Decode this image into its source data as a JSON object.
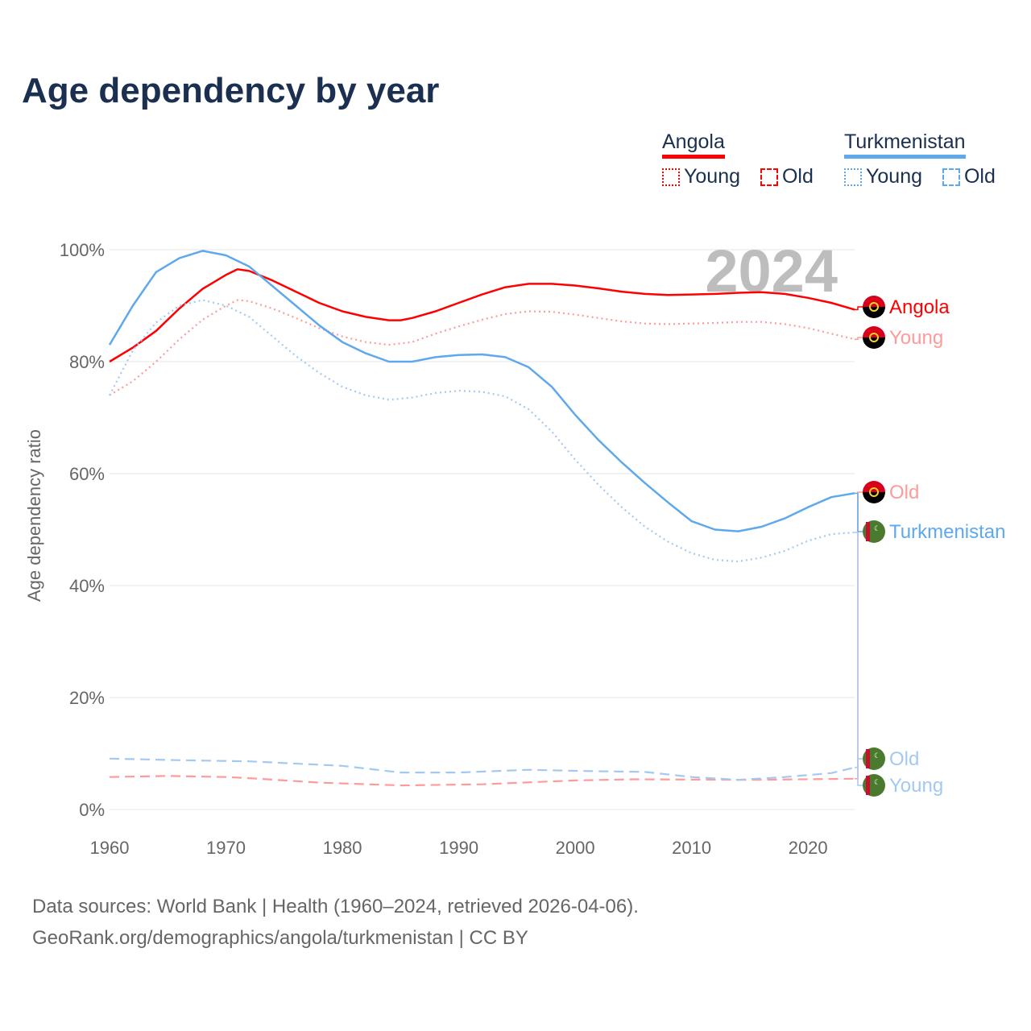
{
  "colors": {
    "angola": "#ff0000",
    "angola_light": "#ff9a9a",
    "turkmenistan": "#5ea8ee",
    "turkmenistan_light": "#a3c9f2",
    "title": "#1b3050"
  },
  "legend": {
    "groups": [
      {
        "name": "Angola",
        "young": "Young",
        "old": "Old"
      },
      {
        "name": "Turkmenistan",
        "young": "Young",
        "old": "Old"
      }
    ]
  },
  "footer": {
    "line1": "Data sources: World Bank | Health (1960–2024, retrieved 2026-04-06).",
    "line2": "GeoRank.org/demographics/angola/turkmenistan | CC BY"
  },
  "chart_data": {
    "type": "line",
    "title": "Age dependency by year",
    "ylabel": "Age dependency ratio",
    "xlabel": "",
    "year_label": "2024",
    "xlim": [
      1960,
      2024
    ],
    "ylim": [
      0,
      100
    ],
    "x_ticks": [
      "1960",
      "1970",
      "1980",
      "1990",
      "2000",
      "2010",
      "2020"
    ],
    "y_ticks": [
      "0%",
      "20%",
      "40%",
      "60%",
      "80%",
      "100%"
    ],
    "grid": true,
    "series": [
      {
        "name": "Angola",
        "label": "Angola",
        "country": "angola",
        "style": "solid",
        "color": "#ff0000",
        "x": [
          1960,
          1962,
          1964,
          1966,
          1968,
          1970,
          1971,
          1972,
          1974,
          1976,
          1978,
          1980,
          1982,
          1984,
          1985,
          1986,
          1988,
          1990,
          1992,
          1994,
          1996,
          1998,
          2000,
          2002,
          2004,
          2006,
          2008,
          2010,
          2012,
          2014,
          2016,
          2018,
          2020,
          2022,
          2024
        ],
        "y": [
          80,
          82.5,
          85.5,
          89.5,
          93,
          95.5,
          96.5,
          96.2,
          94.5,
          92.5,
          90.5,
          89,
          88,
          87.4,
          87.4,
          87.8,
          89,
          90.5,
          92,
          93.3,
          93.9,
          93.9,
          93.6,
          93.1,
          92.5,
          92.1,
          91.9,
          92,
          92.1,
          92.3,
          92.4,
          92.1,
          91.4,
          90.5,
          89.3
        ]
      },
      {
        "name": "Angola Young",
        "label": "Young",
        "country": "angola",
        "style": "dotted",
        "color": "#ff9a9a",
        "x": [
          1960,
          1962,
          1964,
          1966,
          1968,
          1970,
          1971,
          1972,
          1974,
          1976,
          1978,
          1980,
          1982,
          1984,
          1986,
          1988,
          1990,
          1992,
          1994,
          1996,
          1998,
          2000,
          2002,
          2004,
          2006,
          2008,
          2010,
          2012,
          2014,
          2016,
          2018,
          2020,
          2022,
          2024
        ],
        "y": [
          74,
          76.5,
          80,
          84,
          87.5,
          90,
          91,
          90.8,
          89.5,
          87.8,
          86,
          84.5,
          83.5,
          83,
          83.5,
          85,
          86.3,
          87.5,
          88.5,
          89,
          88.9,
          88.4,
          87.8,
          87.2,
          86.8,
          86.7,
          86.8,
          86.9,
          87.1,
          87.1,
          86.7,
          86,
          85,
          84
        ]
      },
      {
        "name": "Angola Old",
        "label": "Old",
        "country": "angola",
        "style": "dashed",
        "color": "#ff9a9a",
        "x": [
          1960,
          1965,
          1970,
          1972,
          1978,
          1985,
          1992,
          2000,
          2005,
          2015,
          2024
        ],
        "y": [
          5.8,
          6.0,
          5.8,
          5.6,
          4.8,
          4.3,
          4.5,
          5.2,
          5.4,
          5.3,
          5.5
        ]
      },
      {
        "name": "Turkmenistan",
        "label": "Turkmenistan",
        "country": "turkmenistan",
        "style": "solid",
        "color": "#5ea8ee",
        "x": [
          1960,
          1962,
          1964,
          1966,
          1968,
          1970,
          1972,
          1974,
          1976,
          1978,
          1980,
          1982,
          1984,
          1986,
          1988,
          1990,
          1992,
          1994,
          1996,
          1998,
          2000,
          2002,
          2004,
          2006,
          2008,
          2010,
          2012,
          2014,
          2016,
          2018,
          2020,
          2022,
          2024
        ],
        "y": [
          83,
          90,
          96,
          98.5,
          99.8,
          99,
          97,
          93.5,
          90,
          86.5,
          83.5,
          81.5,
          80,
          80,
          80.8,
          81.2,
          81.3,
          80.8,
          79,
          75.5,
          70.5,
          66,
          62,
          58.3,
          54.8,
          51.5,
          50,
          49.7,
          50.5,
          52,
          54,
          55.8,
          56.5
        ]
      },
      {
        "name": "Turkmenistan Young",
        "label": "Young",
        "country": "turkmenistan",
        "style": "dotted",
        "color": "#a3c9f2",
        "x": [
          1960,
          1962,
          1964,
          1966,
          1968,
          1970,
          1972,
          1974,
          1976,
          1978,
          1980,
          1982,
          1984,
          1986,
          1988,
          1990,
          1992,
          1994,
          1996,
          1998,
          2000,
          2002,
          2004,
          2006,
          2008,
          2010,
          2012,
          2014,
          2016,
          2018,
          2020,
          2022,
          2024
        ],
        "y": [
          74,
          82,
          87,
          90,
          91,
          90,
          88,
          84.5,
          81,
          78,
          75.5,
          74,
          73.2,
          73.6,
          74.4,
          74.8,
          74.6,
          73.8,
          71.5,
          67.5,
          62.5,
          58,
          54,
          50.5,
          47.8,
          45.8,
          44.6,
          44.3,
          45,
          46.2,
          48,
          49.2,
          49.5
        ]
      },
      {
        "name": "Turkmenistan Old",
        "label": "Old",
        "country": "turkmenistan",
        "style": "dashed",
        "color": "#a3c9f2",
        "x": [
          1960,
          1966,
          1972,
          1980,
          1985,
          1990,
          1996,
          2000,
          2006,
          2010,
          2014,
          2018,
          2022,
          2024
        ],
        "y": [
          9.1,
          8.8,
          8.6,
          7.8,
          6.6,
          6.6,
          7.1,
          6.9,
          6.7,
          5.8,
          5.3,
          5.8,
          6.5,
          7.5
        ]
      }
    ]
  }
}
